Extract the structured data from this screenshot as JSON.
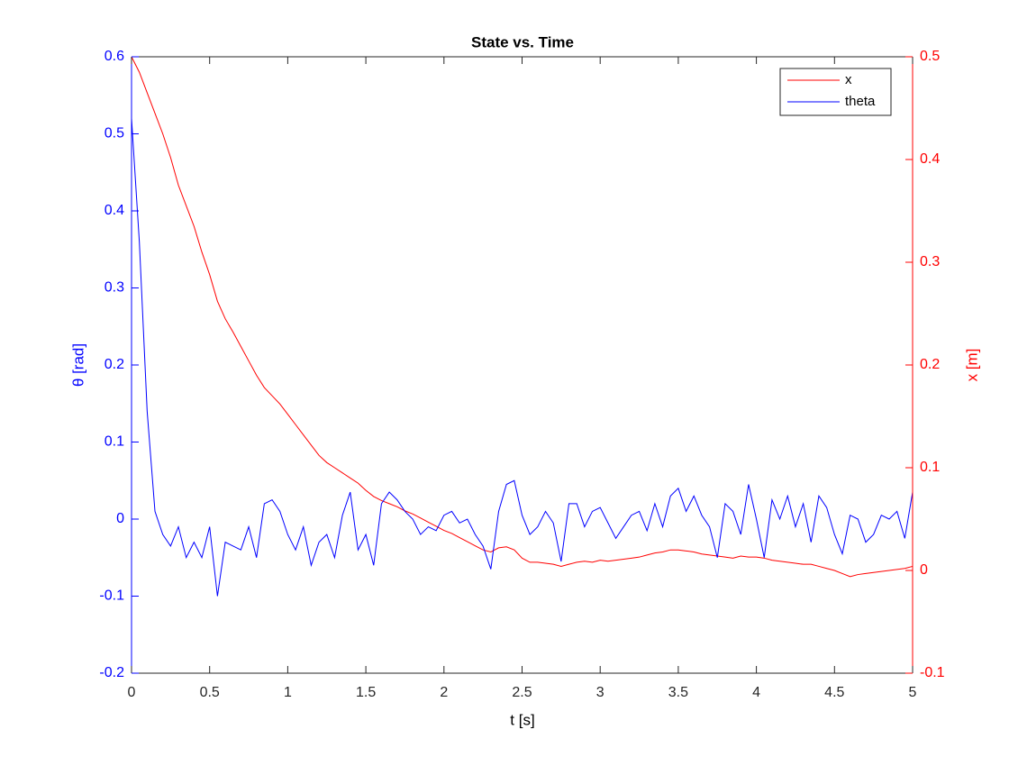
{
  "chart_data": {
    "type": "line",
    "title": "State vs. Time",
    "xlabel": "t [s]",
    "ylabel": "θ [rad]",
    "y2label": "x [m]",
    "x": [
      0,
      0.05,
      0.1,
      0.15,
      0.2,
      0.25,
      0.3,
      0.35,
      0.4,
      0.45,
      0.5,
      0.55,
      0.6,
      0.65,
      0.7,
      0.75,
      0.8,
      0.85,
      0.9,
      0.95,
      1,
      1.05,
      1.1,
      1.15,
      1.2,
      1.25,
      1.3,
      1.35,
      1.4,
      1.45,
      1.5,
      1.55,
      1.6,
      1.65,
      1.7,
      1.75,
      1.8,
      1.85,
      1.9,
      1.95,
      2,
      2.05,
      2.1,
      2.15,
      2.2,
      2.25,
      2.3,
      2.35,
      2.4,
      2.45,
      2.5,
      2.55,
      2.6,
      2.65,
      2.7,
      2.75,
      2.8,
      2.85,
      2.9,
      2.95,
      3,
      3.05,
      3.1,
      3.15,
      3.2,
      3.25,
      3.3,
      3.35,
      3.4,
      3.45,
      3.5,
      3.55,
      3.6,
      3.65,
      3.7,
      3.75,
      3.8,
      3.85,
      3.9,
      3.95,
      4,
      4.05,
      4.1,
      4.15,
      4.2,
      4.25,
      4.3,
      4.35,
      4.4,
      4.45,
      4.5,
      4.55,
      4.6,
      4.65,
      4.7,
      4.75,
      4.8,
      4.85,
      4.9,
      4.95,
      5
    ],
    "series": [
      {
        "name": "x",
        "color": "#ff0000",
        "axis": "y2",
        "values": [
          0.5,
          0.485,
          0.465,
          0.445,
          0.425,
          0.402,
          0.375,
          0.355,
          0.335,
          0.31,
          0.288,
          0.262,
          0.245,
          0.232,
          0.218,
          0.204,
          0.19,
          0.178,
          0.17,
          0.162,
          0.152,
          0.142,
          0.132,
          0.122,
          0.112,
          0.105,
          0.1,
          0.095,
          0.09,
          0.085,
          0.078,
          0.072,
          0.068,
          0.065,
          0.062,
          0.058,
          0.055,
          0.051,
          0.047,
          0.043,
          0.039,
          0.036,
          0.032,
          0.028,
          0.024,
          0.02,
          0.018,
          0.022,
          0.023,
          0.02,
          0.012,
          0.008,
          0.008,
          0.007,
          0.006,
          0.004,
          0.006,
          0.008,
          0.009,
          0.008,
          0.01,
          0.009,
          0.01,
          0.011,
          0.012,
          0.013,
          0.015,
          0.017,
          0.018,
          0.02,
          0.02,
          0.019,
          0.018,
          0.016,
          0.015,
          0.014,
          0.013,
          0.012,
          0.014,
          0.013,
          0.013,
          0.012,
          0.01,
          0.009,
          0.008,
          0.007,
          0.006,
          0.006,
          0.004,
          0.002,
          0,
          -0.003,
          -0.006,
          -0.004,
          -0.003,
          -0.002,
          -0.001,
          0,
          0.001,
          0.002,
          0.004
        ]
      },
      {
        "name": "theta",
        "color": "#0000ff",
        "axis": "y",
        "values": [
          0.52,
          0.36,
          0.14,
          0.01,
          -0.02,
          -0.035,
          -0.01,
          -0.05,
          -0.03,
          -0.05,
          -0.01,
          -0.1,
          -0.03,
          -0.035,
          -0.04,
          -0.01,
          -0.05,
          0.02,
          0.025,
          0.01,
          -0.02,
          -0.04,
          -0.01,
          -0.06,
          -0.03,
          -0.02,
          -0.05,
          0.005,
          0.035,
          -0.04,
          -0.02,
          -0.06,
          0.02,
          0.035,
          0.025,
          0.01,
          0,
          -0.02,
          -0.01,
          -0.015,
          0.005,
          0.01,
          -0.005,
          0,
          -0.02,
          -0.035,
          -0.065,
          0.01,
          0.045,
          0.05,
          0.005,
          -0.02,
          -0.01,
          0.01,
          -0.005,
          -0.055,
          0.02,
          0.02,
          -0.01,
          0.01,
          0.015,
          -0.005,
          -0.025,
          -0.01,
          0.005,
          0.01,
          -0.015,
          0.02,
          -0.01,
          0.03,
          0.04,
          0.01,
          0.03,
          0.005,
          -0.01,
          -0.05,
          0.02,
          0.01,
          -0.02,
          0.045,
          0,
          -0.05,
          0.025,
          0,
          0.03,
          -0.01,
          0.02,
          -0.03,
          0.03,
          0.015,
          -0.02,
          -0.045,
          0.005,
          0,
          -0.03,
          -0.02,
          0.005,
          0,
          0.01,
          -0.025,
          0.035
        ]
      }
    ],
    "xlim": [
      0,
      5
    ],
    "xticks": [
      0,
      0.5,
      1,
      1.5,
      2,
      2.5,
      3,
      3.5,
      4,
      4.5,
      5
    ],
    "ylim": [
      -0.2,
      0.6
    ],
    "yticks": [
      -0.2,
      -0.1,
      0,
      0.1,
      0.2,
      0.3,
      0.4,
      0.5,
      0.6
    ],
    "ycolor": "#0000ff",
    "y2lim": [
      -0.1,
      0.5
    ],
    "y2ticks": [
      -0.1,
      0,
      0.1,
      0.2,
      0.3,
      0.4,
      0.5
    ],
    "y2color": "#ff0000",
    "legend": "northeast",
    "grid": false
  }
}
